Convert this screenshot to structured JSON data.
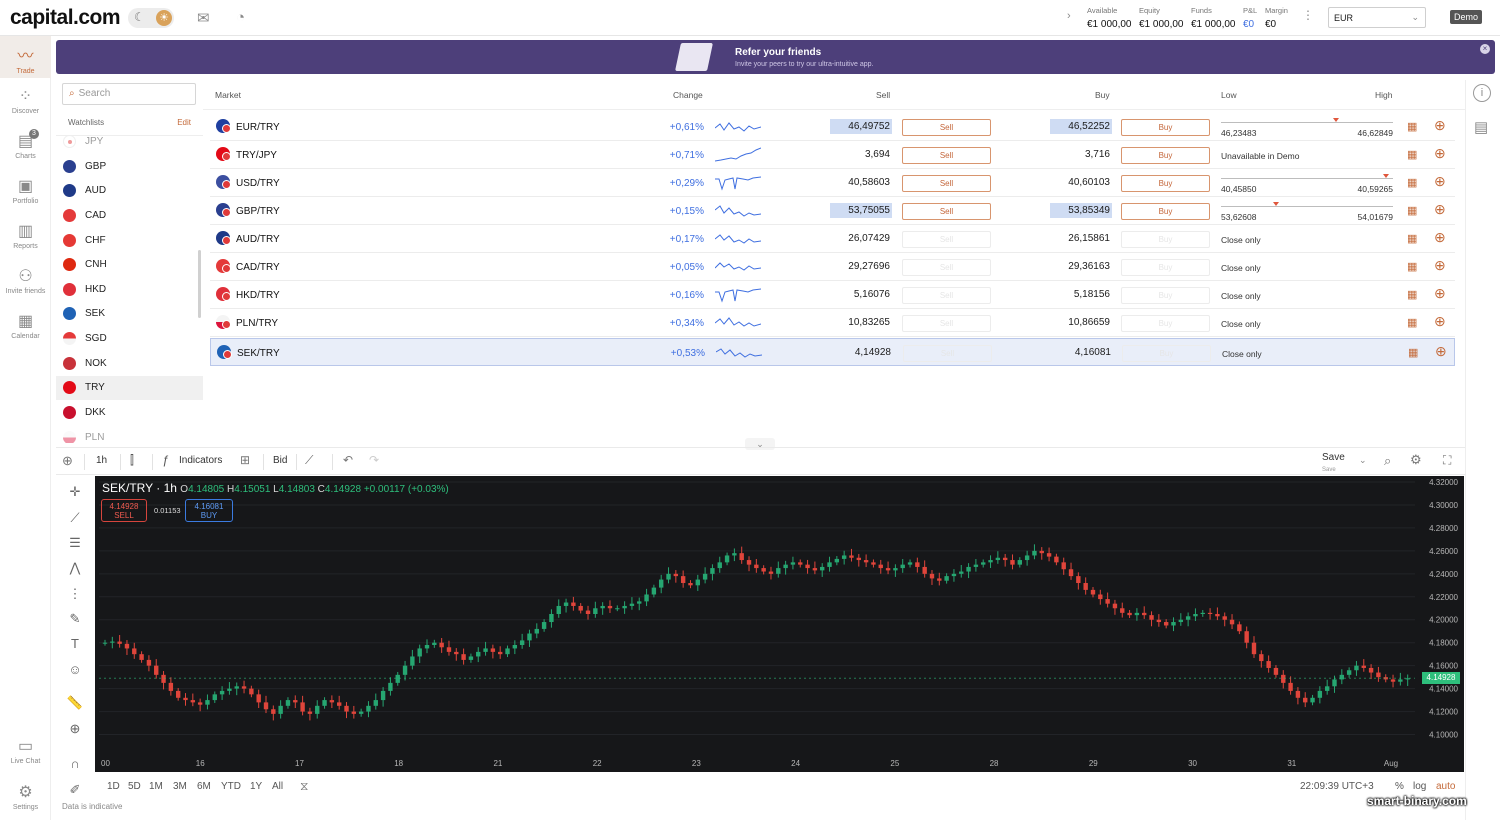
{
  "brand": {
    "name": "capital.com"
  },
  "topbar": {
    "account": [
      {
        "label": "Available",
        "value": "€1 000,00"
      },
      {
        "label": "Equity",
        "value": "€1 000,00"
      },
      {
        "label": "Funds",
        "value": "€1 000,00"
      },
      {
        "label": "P&L",
        "value": "€0"
      },
      {
        "label": "Margin",
        "value": "€0"
      }
    ],
    "currency": "EUR",
    "mode": "Demo"
  },
  "sidebar": {
    "items": [
      {
        "label": "Trade",
        "icon": "trade-icon"
      },
      {
        "label": "Discover",
        "icon": "discover-icon"
      },
      {
        "label": "Charts",
        "icon": "charts-icon",
        "badge": "3"
      },
      {
        "label": "Portfolio",
        "icon": "portfolio-icon"
      },
      {
        "label": "Reports",
        "icon": "reports-icon"
      },
      {
        "label": "Invite friends",
        "icon": "invite-icon"
      },
      {
        "label": "Calendar",
        "icon": "calendar-icon"
      }
    ],
    "bottom": [
      {
        "label": "Live Chat",
        "icon": "chat-icon"
      },
      {
        "label": "Settings",
        "icon": "settings-icon"
      }
    ]
  },
  "banner": {
    "title": "Refer your friends",
    "subtitle": "Invite your peers to try our ultra-intuitive app."
  },
  "search": {
    "placeholder": "Search"
  },
  "watchlist": {
    "label": "Watchlists",
    "edit": "Edit",
    "items": [
      "JPY",
      "GBP",
      "AUD",
      "CAD",
      "CHF",
      "CNH",
      "HKD",
      "SEK",
      "SGD",
      "NOK",
      "TRY",
      "DKK",
      "PLN"
    ],
    "selected": "TRY"
  },
  "market": {
    "headers": {
      "market": "Market",
      "change": "Change",
      "sell": "Sell",
      "buy": "Buy",
      "low": "Low",
      "high": "High"
    },
    "rows": [
      {
        "name": "EUR/TRY",
        "change": "+0,61%",
        "sell": "46,49752",
        "buy": "46,52252",
        "sell_label": "Sell",
        "buy_label": "Buy",
        "low": "46,23483",
        "high": "46,62849",
        "status": "",
        "tradable": true,
        "pos": 0.7
      },
      {
        "name": "TRY/JPY",
        "change": "+0,71%",
        "sell": "3,694",
        "buy": "3,716",
        "sell_label": "Sell",
        "buy_label": "Buy",
        "low": "",
        "high": "",
        "status": "Unavailable in Demo",
        "tradable": true
      },
      {
        "name": "USD/TRY",
        "change": "+0,29%",
        "sell": "40,58603",
        "buy": "40,60103",
        "sell_label": "Sell",
        "buy_label": "Buy",
        "low": "40,45850",
        "high": "40,59265",
        "status": "",
        "tradable": true,
        "pos": 0.95
      },
      {
        "name": "GBP/TRY",
        "change": "+0,15%",
        "sell": "53,75055",
        "buy": "53,85349",
        "sell_label": "Sell",
        "buy_label": "Buy",
        "low": "53,62608",
        "high": "54,01679",
        "status": "",
        "tradable": true,
        "pos": 0.32
      },
      {
        "name": "AUD/TRY",
        "change": "+0,17%",
        "sell": "26,07429",
        "buy": "26,15861",
        "sell_label": "Sell",
        "buy_label": "Buy",
        "low": "",
        "high": "",
        "status": "Close only",
        "tradable": false
      },
      {
        "name": "CAD/TRY",
        "change": "+0,05%",
        "sell": "29,27696",
        "buy": "29,36163",
        "sell_label": "Sell",
        "buy_label": "Buy",
        "low": "",
        "high": "",
        "status": "Close only",
        "tradable": false
      },
      {
        "name": "HKD/TRY",
        "change": "+0,16%",
        "sell": "5,16076",
        "buy": "5,18156",
        "sell_label": "Sell",
        "buy_label": "Buy",
        "low": "",
        "high": "",
        "status": "Close only",
        "tradable": false
      },
      {
        "name": "PLN/TRY",
        "change": "+0,34%",
        "sell": "10,83265",
        "buy": "10,86659",
        "sell_label": "Sell",
        "buy_label": "Buy",
        "low": "",
        "high": "",
        "status": "Close only",
        "tradable": false
      },
      {
        "name": "SEK/TRY",
        "change": "+0,53%",
        "sell": "4,14928",
        "buy": "4,16081",
        "sell_label": "Sell",
        "buy_label": "Buy",
        "low": "",
        "high": "",
        "status": "Close only",
        "tradable": false
      }
    ]
  },
  "chart_toolbar": {
    "interval": "1h",
    "indicators": "Indicators",
    "price_type": "Bid",
    "save": "Save",
    "save_sub": "Save"
  },
  "chart": {
    "symbol": "SEK/TRY · 1h",
    "o_label": "O",
    "o": "4.14805",
    "h_label": "H",
    "h": "4.15051",
    "l_label": "L",
    "l": "4.14803",
    "c_label": "C",
    "c": "4.14928",
    "change": "+0.00117 (+0.03%)",
    "sell": "4.14928",
    "sell_label": "SELL",
    "buy": "4.16081",
    "buy_label": "BUY",
    "spread": "0.01153",
    "last": "4.14928"
  },
  "chart_data": {
    "type": "candlestick",
    "x_ticks": [
      "00",
      "16",
      "17",
      "18",
      "21",
      "22",
      "23",
      "24",
      "25",
      "28",
      "29",
      "30",
      "31",
      "Aug"
    ],
    "y_ticks": [
      "4.32000",
      "4.30000",
      "4.28000",
      "4.26000",
      "4.24000",
      "4.22000",
      "4.20000",
      "4.18000",
      "4.16000",
      "4.14000",
      "4.12000",
      "4.10000"
    ],
    "ylim": [
      4.09,
      4.32
    ],
    "closes": [
      4.18,
      4.181,
      4.179,
      4.175,
      4.17,
      4.165,
      4.16,
      4.152,
      4.145,
      4.138,
      4.132,
      4.13,
      4.128,
      4.126,
      4.13,
      4.135,
      4.138,
      4.14,
      4.142,
      4.14,
      4.135,
      4.128,
      4.122,
      4.118,
      4.125,
      4.13,
      4.128,
      4.12,
      4.118,
      4.125,
      4.13,
      4.128,
      4.125,
      4.12,
      4.118,
      4.12,
      4.125,
      4.13,
      4.138,
      4.145,
      4.152,
      4.16,
      4.168,
      4.175,
      4.178,
      4.18,
      4.176,
      4.172,
      4.17,
      4.165,
      4.168,
      4.172,
      4.175,
      4.172,
      4.17,
      4.175,
      4.178,
      4.182,
      4.188,
      4.192,
      4.198,
      4.205,
      4.212,
      4.215,
      4.212,
      4.208,
      4.205,
      4.21,
      4.212,
      4.21,
      4.21,
      4.212,
      4.214,
      4.216,
      4.222,
      4.228,
      4.235,
      4.24,
      4.238,
      4.232,
      4.23,
      4.235,
      4.24,
      4.245,
      4.25,
      4.256,
      4.258,
      4.252,
      4.248,
      4.245,
      4.242,
      4.24,
      4.245,
      4.248,
      4.25,
      4.248,
      4.245,
      4.243,
      4.246,
      4.25,
      4.253,
      4.256,
      4.254,
      4.252,
      4.25,
      4.248,
      4.245,
      4.243,
      4.245,
      4.248,
      4.25,
      4.246,
      4.24,
      4.236,
      4.234,
      4.238,
      4.24,
      4.242,
      4.246,
      4.248,
      4.25,
      4.252,
      4.254,
      4.252,
      4.248,
      4.252,
      4.256,
      4.26,
      4.258,
      4.255,
      4.25,
      4.244,
      4.238,
      4.232,
      4.226,
      4.222,
      4.218,
      4.214,
      4.21,
      4.206,
      4.204,
      4.206,
      4.204,
      4.2,
      4.198,
      4.195,
      4.198,
      4.2,
      4.203,
      4.205,
      4.206,
      4.205,
      4.203,
      4.2,
      4.196,
      4.19,
      4.18,
      4.17,
      4.164,
      4.158,
      4.152,
      4.145,
      4.138,
      4.132,
      4.128,
      4.132,
      4.138,
      4.142,
      4.148,
      4.152,
      4.156,
      4.16,
      4.158,
      4.154,
      4.15,
      4.148,
      4.146,
      4.148,
      4.149
    ]
  },
  "chart_bottom": {
    "ranges": [
      "1D",
      "5D",
      "1M",
      "3M",
      "6M",
      "YTD",
      "1Y",
      "All"
    ],
    "time": "22:09:39 UTC+3",
    "opts": [
      "%",
      "log",
      "auto"
    ],
    "note": "Data is indicative"
  },
  "watermark": "smart-binary.com"
}
